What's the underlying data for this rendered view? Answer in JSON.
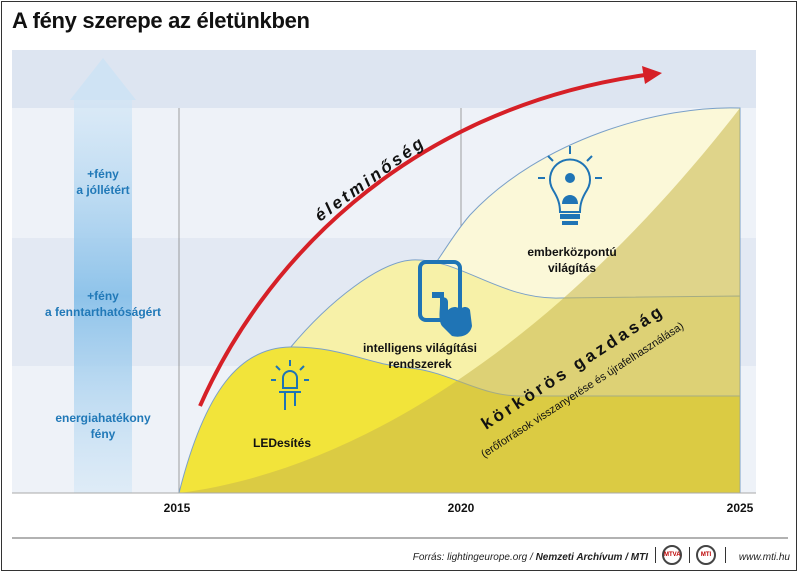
{
  "title": "A fény szerepe az életünkben",
  "chart_data": {
    "type": "area",
    "x_ticks": [
      "2015",
      "2020",
      "2025"
    ],
    "y_bands": [
      "energiahatékony\nfény",
      "+fény\na fenntarthatóságért",
      "+fény\na jóllétért"
    ],
    "areas": [
      {
        "name": "LEDesítés",
        "color": "#f2e43a"
      },
      {
        "name": "intelligens világítási\nrendszerek",
        "color": "#f7f1a8"
      },
      {
        "name": "emberközpontú\nvilágítás",
        "color": "#fbf8d8"
      }
    ],
    "arrow_label": "életminőség",
    "arrow_color": "#d62027",
    "wedge_label": "körkörös gazdaság",
    "wedge_sublabel": "(erőforrások visszanyerése és újrafelhasználása)",
    "wedge_color": "#c9b74a"
  },
  "footer": {
    "source_prefix": "Forrás: lightingeurope.org / ",
    "source_bold": "Nemzeti Archívum / MTI",
    "logo1": "MTVA",
    "logo2": "MTI",
    "website": "www.mti.hu"
  }
}
